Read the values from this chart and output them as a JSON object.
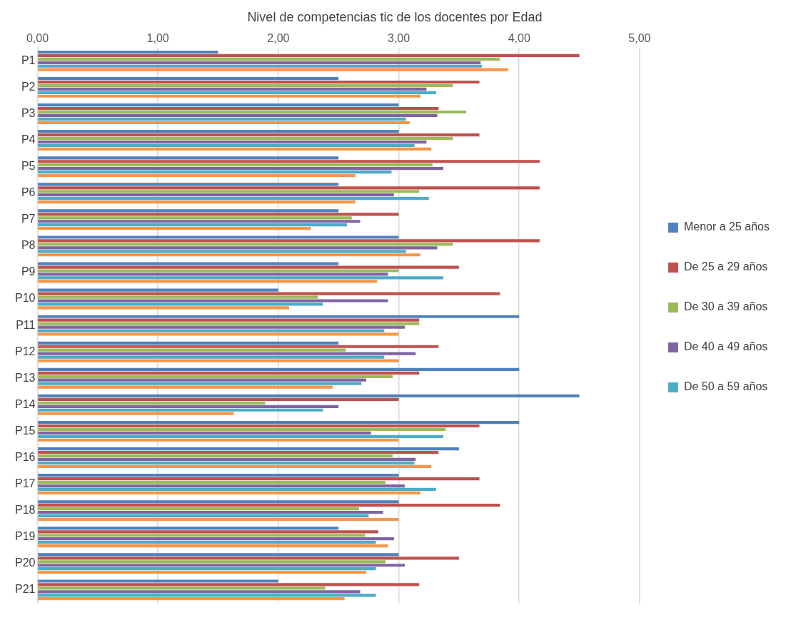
{
  "chart_data": {
    "type": "bar",
    "orientation": "horizontal",
    "title": "Nivel de competencias tic de los docentes por Edad",
    "categories": [
      "P1",
      "P2",
      "P3",
      "P4",
      "P5",
      "P6",
      "P7",
      "P8",
      "P9",
      "P10",
      "P11",
      "P12",
      "P13",
      "P14",
      "P15",
      "P16",
      "P17",
      "P18",
      "P19",
      "P20",
      "P21"
    ],
    "series": [
      {
        "name": "Menor a 25 años",
        "color": "#4f81bd",
        "values": [
          1.5,
          2.5,
          3.0,
          3.0,
          2.5,
          2.5,
          2.5,
          3.0,
          2.5,
          2.0,
          4.0,
          2.5,
          4.0,
          4.5,
          4.0,
          3.5,
          3.0,
          3.0,
          2.5,
          3.0,
          2.0
        ]
      },
      {
        "name": "De 25 a 29 años",
        "color": "#c0504d",
        "values": [
          4.5,
          3.67,
          3.33,
          3.67,
          4.17,
          4.17,
          3.0,
          4.17,
          3.5,
          3.84,
          3.17,
          3.33,
          3.17,
          3.0,
          3.67,
          3.33,
          3.67,
          3.84,
          2.83,
          3.5,
          3.17
        ]
      },
      {
        "name": "De 30 a 39 años",
        "color": "#9bbb59",
        "values": [
          3.84,
          3.45,
          3.56,
          3.45,
          3.28,
          3.17,
          2.61,
          3.45,
          3.0,
          2.33,
          3.17,
          2.56,
          2.95,
          1.89,
          3.39,
          2.95,
          2.89,
          2.67,
          2.72,
          2.89,
          2.39
        ]
      },
      {
        "name": "De 40 a 49 años",
        "color": "#8064a2",
        "values": [
          3.68,
          3.23,
          3.32,
          3.23,
          3.37,
          2.96,
          2.68,
          3.32,
          2.91,
          2.91,
          3.05,
          3.14,
          2.73,
          2.5,
          2.77,
          3.14,
          3.05,
          2.87,
          2.96,
          3.05,
          2.68
        ]
      },
      {
        "name": "De 50 a 59 años",
        "color": "#4bacc6",
        "values": [
          3.69,
          3.31,
          3.06,
          3.13,
          2.94,
          3.25,
          2.57,
          3.06,
          3.37,
          2.37,
          2.88,
          2.88,
          2.69,
          2.37,
          3.37,
          3.13,
          3.31,
          2.75,
          2.81,
          2.81,
          2.81
        ]
      },
      {
        "color": "#f79646",
        "values": [
          3.91,
          3.18,
          3.09,
          3.27,
          2.64,
          2.64,
          2.27,
          3.18,
          2.82,
          2.09,
          3.0,
          3.0,
          2.45,
          1.63,
          3.0,
          3.27,
          3.18,
          3.0,
          2.91,
          2.73,
          2.55
        ]
      }
    ],
    "xlim": [
      0,
      5
    ],
    "xticks": [
      {
        "value": 0,
        "label": "0,00"
      },
      {
        "value": 1,
        "label": "1,00"
      },
      {
        "value": 2,
        "label": "2,00"
      },
      {
        "value": 3,
        "label": "3,00"
      },
      {
        "value": 4,
        "label": "4,00"
      },
      {
        "value": 5,
        "label": "5,00"
      }
    ],
    "grid": "x",
    "legend": "right"
  }
}
